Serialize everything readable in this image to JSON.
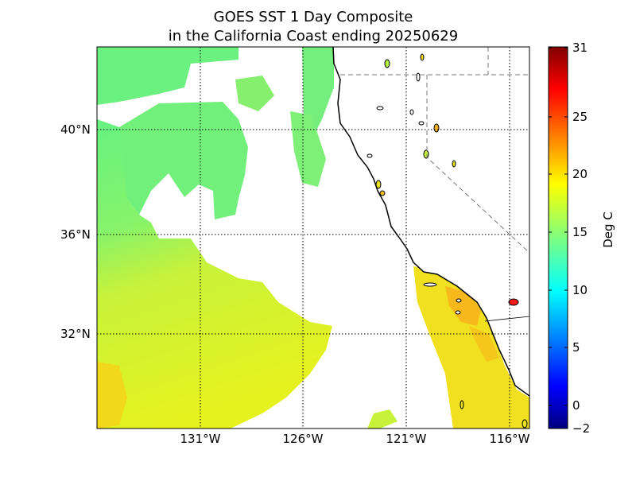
{
  "title": {
    "line1": "GOES SST 1 Day Composite",
    "line2": "in the California Coast ending 20250629"
  },
  "map": {
    "lat_labels": [
      "40°N",
      "36°N",
      "32°N"
    ],
    "lon_labels": [
      "131°W",
      "126°W",
      "121°W",
      "116°W"
    ],
    "colors": {
      "ocean_cool": "#5ef08a",
      "ocean_mid": "#a8f448",
      "ocean_warm": "#e4f21c",
      "ocean_hot": "#f7c312",
      "land": "#ffffff",
      "coastline": "#000000",
      "grid": "#000000",
      "border": "#888888"
    }
  },
  "colorbar": {
    "label": "Deg C",
    "ticks": [
      "31",
      "25",
      "20",
      "15",
      "10",
      "5",
      "0",
      "−2"
    ],
    "colormap": "jet",
    "range": [
      -2,
      31
    ]
  }
}
